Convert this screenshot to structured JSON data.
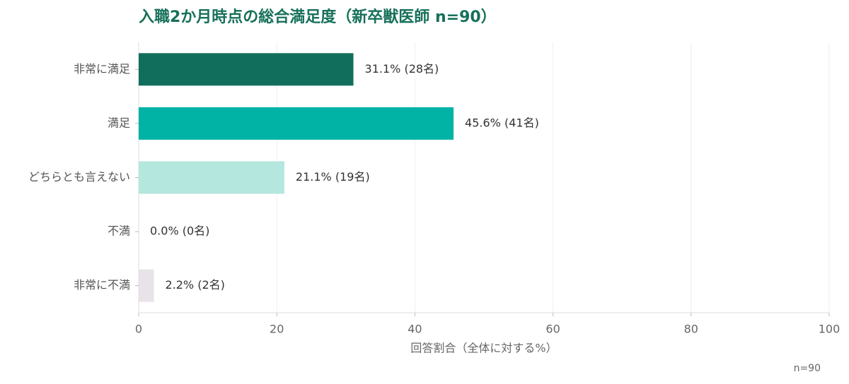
{
  "chart_data": {
    "type": "bar",
    "title": "入職2か月時点の総合満足度（新卒獣医師 n=90）",
    "categories": [
      "非常に満足",
      "満足",
      "どちらとも言えない",
      "不満",
      "非常に不満"
    ],
    "values": [
      31.1,
      45.6,
      21.1,
      0.0,
      2.2
    ],
    "value_labels": [
      "31.1% (28名)",
      "45.6% (41名)",
      "21.1% (19名)",
      "0.0% (0名)",
      "2.2% (2名)"
    ],
    "colors": [
      "#116e5c",
      "#00b3a4",
      "#b4e7de",
      "#f2c4c0",
      "#e8e3e8"
    ],
    "xlim": [
      0,
      100
    ],
    "xticks": [
      0,
      20,
      40,
      60,
      80,
      100
    ],
    "x_label": "回答割合（全体に対する%）",
    "footnote": "n=90",
    "grid": true
  }
}
